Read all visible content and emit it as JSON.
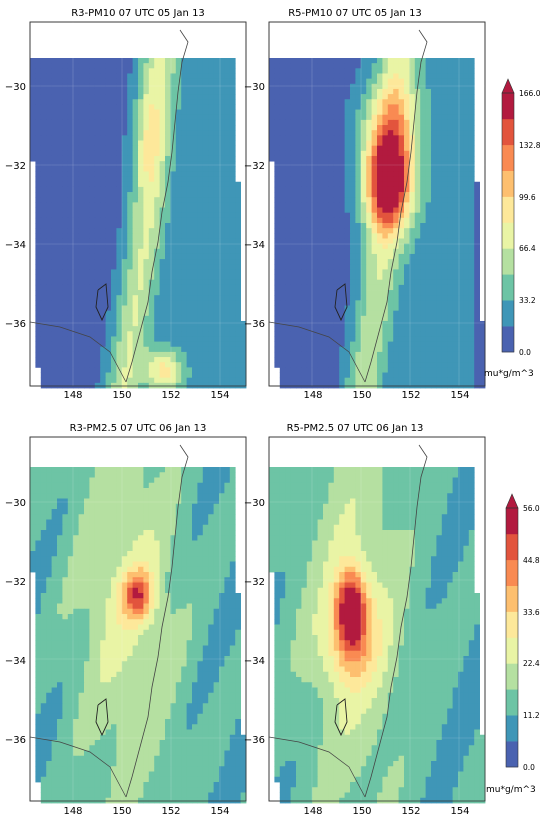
{
  "chart_data": [
    {
      "type": "heatmap",
      "title": "R3-PM10 07 UTC 05 Jan 13",
      "xticks": [
        "148",
        "150",
        "152",
        "154"
      ],
      "yticks": [
        "−30",
        "−32",
        "−34",
        "−36"
      ],
      "xlim": [
        146.2,
        155.0
      ],
      "ylim": [
        -37.5,
        -28.5
      ],
      "colorbar": null,
      "peak": {
        "lon": 151.6,
        "lat": -36.6,
        "value": 99
      }
    },
    {
      "type": "heatmap",
      "title": "R5-PM10 07 UTC 05 Jan 13",
      "xticks": [
        "148",
        "150",
        "152",
        "154"
      ],
      "yticks": [
        "−30",
        "−32",
        "−34",
        "−36"
      ],
      "xlim": [
        146.2,
        155.0
      ],
      "ylim": [
        -37.5,
        -28.5
      ],
      "colorbar": {
        "vmin": 0,
        "vmax": 166.0,
        "tick_labels": [
          "166.0",
          "132.8",
          "99.6",
          "66.4",
          "33.2",
          "0.0"
        ],
        "unit": "mu*g/m^3"
      },
      "peak": {
        "lon": 150.8,
        "lat": -32.6,
        "value": 160
      }
    },
    {
      "type": "heatmap",
      "title": "R3-PM2.5 07 UTC 06 Jan 13",
      "xticks": [
        "148",
        "150",
        "152",
        "154"
      ],
      "yticks": [
        "−30",
        "−32",
        "−34",
        "−36"
      ],
      "xlim": [
        146.2,
        155.0
      ],
      "ylim": [
        -37.5,
        -28.5
      ],
      "colorbar": null,
      "peak": {
        "lon": 150.8,
        "lat": -32.5,
        "value": 45
      }
    },
    {
      "type": "heatmap",
      "title": "R5-PM2.5 07 UTC 06 Jan 13",
      "xticks": [
        "148",
        "150",
        "152",
        "154"
      ],
      "yticks": [
        "−30",
        "−32",
        "−34",
        "−36"
      ],
      "xlim": [
        146.2,
        155.0
      ],
      "ylim": [
        -37.5,
        -28.5
      ],
      "colorbar": {
        "vmin": 0,
        "vmax": 56.0,
        "tick_labels": [
          "56.0",
          "44.8",
          "33.6",
          "22.4",
          "11.2",
          "0.0"
        ],
        "unit": "mu*g/m^3"
      },
      "peak": {
        "lon": 149.4,
        "lat": -32.9,
        "value": 54
      }
    }
  ],
  "colormap": [
    "#4a62b0",
    "#3f96b7",
    "#6dc4a5",
    "#b5e0a1",
    "#e9f4a5",
    "#fde89a",
    "#fdbf6f",
    "#f98a52",
    "#e2543d",
    "#b21a3f"
  ]
}
